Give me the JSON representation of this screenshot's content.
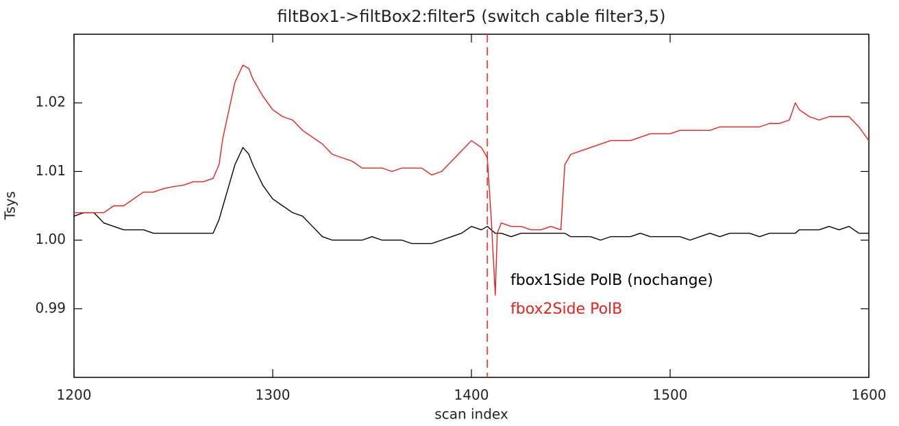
{
  "chart_data": {
    "type": "line",
    "title": "filtBox1->filtBox2:filter5 (switch cable filter3,5)",
    "xlabel": "scan index",
    "ylabel": "Tsys",
    "xlim": [
      1200,
      1600
    ],
    "ylim": [
      0.98,
      1.03
    ],
    "xticks": [
      1200,
      1300,
      1400,
      1500,
      1600
    ],
    "yticks": [
      0.99,
      {
        "value": 1,
        "label": "1.00"
      },
      1.01,
      1.02
    ],
    "vline": {
      "x": 1408,
      "color": "#e8403c",
      "dash": true
    },
    "x": [
      1200,
      1205,
      1210,
      1215,
      1220,
      1225,
      1230,
      1235,
      1240,
      1245,
      1250,
      1255,
      1260,
      1265,
      1270,
      1273,
      1275,
      1278,
      1281,
      1285,
      1288,
      1290,
      1295,
      1300,
      1305,
      1310,
      1315,
      1320,
      1325,
      1330,
      1335,
      1340,
      1345,
      1350,
      1355,
      1360,
      1365,
      1370,
      1375,
      1380,
      1385,
      1390,
      1395,
      1400,
      1405,
      1408,
      1410,
      1412,
      1413,
      1415,
      1420,
      1425,
      1430,
      1435,
      1440,
      1445,
      1447,
      1450,
      1455,
      1460,
      1465,
      1470,
      1475,
      1480,
      1485,
      1490,
      1495,
      1500,
      1505,
      1510,
      1515,
      1520,
      1525,
      1530,
      1535,
      1540,
      1545,
      1550,
      1555,
      1560,
      1563,
      1565,
      1570,
      1575,
      1580,
      1585,
      1590,
      1595,
      1600
    ],
    "series": [
      {
        "name": "fbox1Side PolB (nochange)",
        "color": "#000000",
        "values": [
          1.0035,
          1.004,
          1.004,
          1.0025,
          1.002,
          1.0015,
          1.0015,
          1.0015,
          1.001,
          1.001,
          1.001,
          1.001,
          1.001,
          1.001,
          1.001,
          1.003,
          1.005,
          1.008,
          1.011,
          1.0135,
          1.0125,
          1.011,
          1.008,
          1.006,
          1.005,
          1.004,
          1.0035,
          1.002,
          1.0005,
          1.0,
          1.0,
          1.0,
          1.0,
          1.0005,
          1.0,
          1.0,
          1.0,
          0.9995,
          0.9995,
          0.9995,
          1.0,
          1.0005,
          1.001,
          1.002,
          1.0015,
          1.002,
          1.0015,
          1.001,
          1.001,
          1.001,
          1.0005,
          1.001,
          1.001,
          1.001,
          1.001,
          1.001,
          1.001,
          1.0005,
          1.0005,
          1.0005,
          1.0,
          1.0005,
          1.0005,
          1.0005,
          1.001,
          1.0005,
          1.0005,
          1.0005,
          1.0005,
          1.0,
          1.0005,
          1.001,
          1.0005,
          1.001,
          1.001,
          1.001,
          1.0005,
          1.001,
          1.001,
          1.001,
          1.001,
          1.0015,
          1.0015,
          1.0015,
          1.002,
          1.0015,
          1.002,
          1.001,
          1.001
        ]
      },
      {
        "name": "fbox2Side PolB",
        "color": "#e8201c",
        "values": [
          1.004,
          1.004,
          1.004,
          1.004,
          1.005,
          1.005,
          1.006,
          1.007,
          1.007,
          1.0075,
          1.0078,
          1.008,
          1.0085,
          1.0085,
          1.009,
          1.011,
          1.015,
          1.019,
          1.023,
          1.0255,
          1.025,
          1.0235,
          1.021,
          1.019,
          1.018,
          1.0175,
          1.016,
          1.015,
          1.014,
          1.0125,
          1.012,
          1.0115,
          1.0105,
          1.0105,
          1.0105,
          1.01,
          1.0105,
          1.0105,
          1.0105,
          1.0095,
          1.01,
          1.0115,
          1.013,
          1.0145,
          1.0135,
          1.012,
          1.003,
          0.992,
          1.001,
          1.0025,
          1.002,
          1.002,
          1.0015,
          1.0015,
          1.002,
          1.0015,
          1.011,
          1.0125,
          1.013,
          1.0135,
          1.014,
          1.0145,
          1.0145,
          1.0145,
          1.015,
          1.0155,
          1.0155,
          1.0155,
          1.016,
          1.016,
          1.016,
          1.016,
          1.0165,
          1.0165,
          1.0165,
          1.0165,
          1.0165,
          1.017,
          1.017,
          1.0175,
          1.02,
          1.019,
          1.018,
          1.0175,
          1.018,
          1.018,
          1.018,
          1.0165,
          1.0145
        ]
      }
    ]
  }
}
